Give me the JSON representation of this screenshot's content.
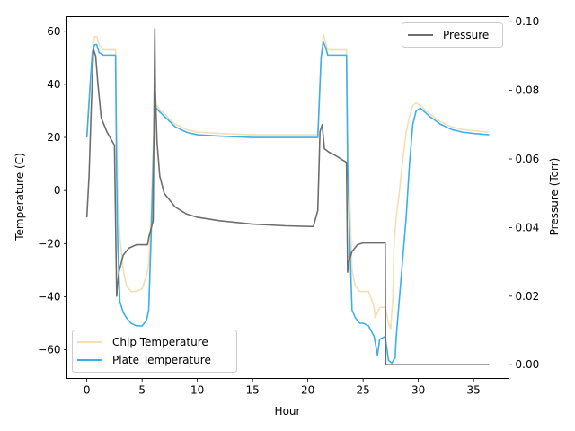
{
  "chart_data": {
    "type": "line",
    "xlabel": "Hour",
    "ylabel_left": "Temperature (C)",
    "ylabel_right": "Pressure (Torr)",
    "xlim": [
      -1.8,
      38.2
    ],
    "ylim_left": [
      -70.8,
      65.5
    ],
    "ylim_right": [
      -0.004,
      0.1015
    ],
    "x_ticks": [
      0,
      5,
      10,
      15,
      20,
      25,
      30,
      35
    ],
    "y_left_ticks": [
      -60,
      -40,
      -20,
      0,
      20,
      40,
      60
    ],
    "y_right_ticks": [
      0.0,
      0.02,
      0.04,
      0.06,
      0.08,
      0.1
    ],
    "y_right_tick_labels": [
      "0.00",
      "0.02",
      "0.04",
      "0.06",
      "0.08",
      "0.10"
    ],
    "grid": false,
    "legend_left": {
      "placement": "bottom-left",
      "entries": [
        "Chip Temperature",
        "Plate Temperature"
      ]
    },
    "legend_right": {
      "placement": "top-right",
      "entries": [
        "Pressure"
      ]
    },
    "series": [
      {
        "name": "Chip Temperature",
        "axis": "left",
        "color": "#f5deb3",
        "x": [
          0,
          0.3,
          0.5,
          0.7,
          0.9,
          1.1,
          1.5,
          2.0,
          2.6,
          2.7,
          2.8,
          3.0,
          3.3,
          3.6,
          4.0,
          4.5,
          5.0,
          5.4,
          5.6,
          5.8,
          6.0,
          6.1,
          6.2,
          6.3,
          6.5,
          7.0,
          8.0,
          9.0,
          10.0,
          12.0,
          15.0,
          18.0,
          20.0,
          20.9,
          21.0,
          21.2,
          21.4,
          21.6,
          21.8,
          22.2,
          23.0,
          23.5,
          23.6,
          23.8,
          24.0,
          24.3,
          24.7,
          25.0,
          25.5,
          26.0,
          26.1,
          26.5,
          27.0,
          27.3,
          27.5,
          27.7,
          27.8,
          28.0,
          28.3,
          28.6,
          28.9,
          29.2,
          29.5,
          29.8,
          30.2,
          31.0,
          32.0,
          33.0,
          34.0,
          35.0,
          36.4
        ],
        "values": [
          20,
          40,
          52,
          58,
          58,
          55,
          53,
          53,
          53,
          20,
          0,
          -18,
          -30,
          -36,
          -38,
          -38,
          -37,
          -32,
          -28,
          -10,
          15,
          28,
          33,
          32,
          31,
          29,
          25,
          23,
          22,
          21.5,
          21,
          21,
          21,
          21,
          30,
          50,
          59,
          56,
          53,
          53,
          53,
          53,
          20,
          -5,
          -30,
          -36,
          -38,
          -38,
          -38,
          -44,
          -48,
          -44,
          -44,
          -50,
          -52,
          -40,
          -20,
          -10,
          0,
          12,
          22,
          28,
          32,
          33,
          32,
          29,
          26,
          24,
          23,
          22.5,
          22
        ]
      },
      {
        "name": "Plate Temperature",
        "axis": "left",
        "color": "#3cb0eb",
        "x": [
          0,
          0.3,
          0.5,
          0.7,
          0.9,
          1.1,
          1.5,
          2.0,
          2.6,
          2.7,
          2.8,
          3.0,
          3.3,
          3.6,
          4.0,
          4.5,
          5.0,
          5.4,
          5.6,
          5.8,
          6.0,
          6.1,
          6.2,
          6.3,
          6.5,
          7.0,
          8.0,
          9.0,
          10.0,
          12.0,
          15.0,
          18.0,
          20.0,
          20.9,
          21.0,
          21.2,
          21.4,
          21.6,
          21.8,
          22.2,
          23.0,
          23.5,
          23.6,
          23.8,
          24.0,
          24.3,
          24.7,
          25.0,
          25.5,
          26.0,
          26.3,
          26.5,
          27.0,
          27.3,
          27.6,
          27.9,
          28.0,
          28.3,
          28.6,
          28.9,
          29.2,
          29.5,
          29.8,
          30.2,
          31.0,
          32.0,
          33.0,
          34.0,
          35.0,
          36.4
        ],
        "values": [
          20,
          40,
          52,
          55,
          55,
          52,
          51,
          51,
          51,
          5,
          -20,
          -42,
          -46,
          -48,
          -50,
          -51,
          -51,
          -49,
          -45,
          -20,
          10,
          25,
          31,
          31,
          30,
          28,
          24,
          22,
          21,
          20.5,
          20,
          20,
          20,
          20,
          30,
          50,
          56,
          54,
          51,
          51,
          51,
          51,
          10,
          -20,
          -45,
          -48,
          -50,
          -50,
          -51,
          -55,
          -62,
          -56,
          -55,
          -64,
          -65,
          -63,
          -55,
          -40,
          -25,
          -10,
          10,
          25,
          30,
          31,
          28,
          25,
          23,
          22,
          21.5,
          21
        ]
      },
      {
        "name": "Pressure",
        "axis": "right",
        "color": "#6e6e6e",
        "x": [
          0,
          0.2,
          0.4,
          0.6,
          0.8,
          1.0,
          1.3,
          1.8,
          2.5,
          2.7,
          2.75,
          2.9,
          3.3,
          3.8,
          4.5,
          5.5,
          5.6,
          6.0,
          6.15,
          6.2,
          6.35,
          6.6,
          7.0,
          8.0,
          9.0,
          10.0,
          12.0,
          15.0,
          18.0,
          20.5,
          20.9,
          21.1,
          21.3,
          21.5,
          21.9,
          22.5,
          23.5,
          23.6,
          23.7,
          24.0,
          24.5,
          25.0,
          26.0,
          27.0,
          27.05,
          27.1,
          28.0,
          30.0,
          33.0,
          36.4
        ],
        "values": [
          0.043,
          0.055,
          0.075,
          0.092,
          0.09,
          0.082,
          0.072,
          0.068,
          0.064,
          0.02,
          0.022,
          0.027,
          0.032,
          0.034,
          0.035,
          0.035,
          0.037,
          0.042,
          0.098,
          0.08,
          0.065,
          0.055,
          0.05,
          0.046,
          0.044,
          0.043,
          0.042,
          0.041,
          0.0405,
          0.0403,
          0.045,
          0.068,
          0.07,
          0.063,
          0.062,
          0.061,
          0.059,
          0.027,
          0.03,
          0.033,
          0.035,
          0.0355,
          0.0355,
          0.0355,
          0.0,
          0.0,
          0.0,
          0.0,
          0.0,
          0.0
        ]
      }
    ]
  }
}
